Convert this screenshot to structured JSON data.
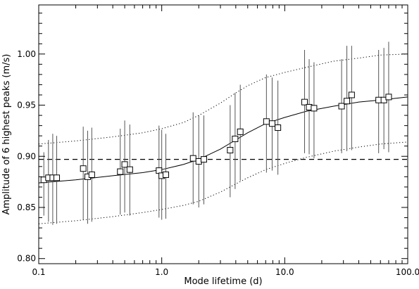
{
  "chart_data": {
    "type": "scatter",
    "xlabel": "Mode lifetime (d)",
    "ylabel": "Amplitude of 6 highest peaks (m/s)",
    "xscale": "log",
    "xlim": [
      0.1,
      100.0
    ],
    "ylim": [
      0.795,
      1.048
    ],
    "grid": false,
    "x_ticks": [
      {
        "value": 0.1,
        "label": "0.1"
      },
      {
        "value": 1.0,
        "label": "1.0"
      },
      {
        "value": 10.0,
        "label": "10.0"
      },
      {
        "value": 100.0,
        "label": "100.0"
      }
    ],
    "y_ticks": [
      {
        "value": 0.8,
        "label": "0.80"
      },
      {
        "value": 0.85,
        "label": "0.85"
      },
      {
        "value": 0.9,
        "label": "0.90"
      },
      {
        "value": 0.95,
        "label": "0.95"
      },
      {
        "value": 1.0,
        "label": "1.00"
      }
    ],
    "reference_level": 0.897,
    "points": [
      {
        "x": 0.11,
        "y": 0.877,
        "err_lo": 0.842,
        "err_hi": 0.904
      },
      {
        "x": 0.12,
        "y": 0.879,
        "err_lo": 0.836,
        "err_hi": 0.916
      },
      {
        "x": 0.13,
        "y": 0.879,
        "err_lo": 0.833,
        "err_hi": 0.922
      },
      {
        "x": 0.14,
        "y": 0.879,
        "err_lo": 0.834,
        "err_hi": 0.92
      },
      {
        "x": 0.23,
        "y": 0.888,
        "err_lo": 0.838,
        "err_hi": 0.929
      },
      {
        "x": 0.25,
        "y": 0.88,
        "err_lo": 0.834,
        "err_hi": 0.925
      },
      {
        "x": 0.27,
        "y": 0.882,
        "err_lo": 0.836,
        "err_hi": 0.928
      },
      {
        "x": 0.46,
        "y": 0.885,
        "err_lo": 0.843,
        "err_hi": 0.927
      },
      {
        "x": 0.5,
        "y": 0.892,
        "err_lo": 0.845,
        "err_hi": 0.935
      },
      {
        "x": 0.55,
        "y": 0.887,
        "err_lo": 0.842,
        "err_hi": 0.931
      },
      {
        "x": 0.95,
        "y": 0.886,
        "err_lo": 0.84,
        "err_hi": 0.93
      },
      {
        "x": 1.0,
        "y": 0.881,
        "err_lo": 0.838,
        "err_hi": 0.926
      },
      {
        "x": 1.08,
        "y": 0.882,
        "err_lo": 0.839,
        "err_hi": 0.922
      },
      {
        "x": 1.8,
        "y": 0.898,
        "err_lo": 0.853,
        "err_hi": 0.943
      },
      {
        "x": 2.0,
        "y": 0.895,
        "err_lo": 0.85,
        "err_hi": 0.94
      },
      {
        "x": 2.2,
        "y": 0.897,
        "err_lo": 0.853,
        "err_hi": 0.94
      },
      {
        "x": 3.6,
        "y": 0.906,
        "err_lo": 0.86,
        "err_hi": 0.95
      },
      {
        "x": 3.95,
        "y": 0.917,
        "err_lo": 0.868,
        "err_hi": 0.962
      },
      {
        "x": 4.35,
        "y": 0.924,
        "err_lo": 0.876,
        "err_hi": 0.97
      },
      {
        "x": 7.1,
        "y": 0.934,
        "err_lo": 0.884,
        "err_hi": 0.98
      },
      {
        "x": 7.9,
        "y": 0.932,
        "err_lo": 0.886,
        "err_hi": 0.977
      },
      {
        "x": 8.8,
        "y": 0.928,
        "err_lo": 0.882,
        "err_hi": 0.974
      },
      {
        "x": 14.5,
        "y": 0.953,
        "err_lo": 0.903,
        "err_hi": 1.004
      },
      {
        "x": 15.8,
        "y": 0.948,
        "err_lo": 0.902,
        "err_hi": 0.995
      },
      {
        "x": 17.3,
        "y": 0.947,
        "err_lo": 0.898,
        "err_hi": 0.992
      },
      {
        "x": 29.0,
        "y": 0.949,
        "err_lo": 0.903,
        "err_hi": 0.995
      },
      {
        "x": 32.0,
        "y": 0.954,
        "err_lo": 0.905,
        "err_hi": 1.008
      },
      {
        "x": 35.0,
        "y": 0.96,
        "err_lo": 0.906,
        "err_hi": 1.008
      },
      {
        "x": 58.0,
        "y": 0.955,
        "err_lo": 0.903,
        "err_hi": 1.004
      },
      {
        "x": 64.0,
        "y": 0.955,
        "err_lo": 0.907,
        "err_hi": 1.006
      },
      {
        "x": 70.0,
        "y": 0.958,
        "err_lo": 0.904,
        "err_hi": 1.012
      }
    ],
    "fit_curve": [
      [
        0.1,
        0.874
      ],
      [
        0.2,
        0.877
      ],
      [
        0.4,
        0.881
      ],
      [
        0.7,
        0.884
      ],
      [
        1.0,
        0.887
      ],
      [
        1.5,
        0.892
      ],
      [
        2.0,
        0.897
      ],
      [
        3.0,
        0.907
      ],
      [
        4.0,
        0.916
      ],
      [
        5.0,
        0.923
      ],
      [
        7.0,
        0.932
      ],
      [
        10.0,
        0.938
      ],
      [
        15.0,
        0.944
      ],
      [
        25.0,
        0.949
      ],
      [
        40.0,
        0.953
      ],
      [
        60.0,
        0.955
      ],
      [
        100.0,
        0.958
      ]
    ],
    "upper_bound_curve": [
      [
        0.1,
        0.912
      ],
      [
        0.2,
        0.915
      ],
      [
        0.4,
        0.919
      ],
      [
        0.7,
        0.923
      ],
      [
        1.0,
        0.927
      ],
      [
        1.5,
        0.933
      ],
      [
        2.0,
        0.94
      ],
      [
        3.0,
        0.952
      ],
      [
        4.0,
        0.962
      ],
      [
        5.0,
        0.969
      ],
      [
        7.0,
        0.977
      ],
      [
        10.0,
        0.982
      ],
      [
        15.0,
        0.987
      ],
      [
        25.0,
        0.993
      ],
      [
        40.0,
        0.996
      ],
      [
        60.0,
        0.999
      ],
      [
        100.0,
        1.0
      ]
    ],
    "lower_bound_curve": [
      [
        0.1,
        0.834
      ],
      [
        0.2,
        0.837
      ],
      [
        0.4,
        0.841
      ],
      [
        0.7,
        0.845
      ],
      [
        1.0,
        0.848
      ],
      [
        1.5,
        0.852
      ],
      [
        2.0,
        0.856
      ],
      [
        3.0,
        0.865
      ],
      [
        4.0,
        0.873
      ],
      [
        5.0,
        0.879
      ],
      [
        7.0,
        0.887
      ],
      [
        10.0,
        0.893
      ],
      [
        15.0,
        0.899
      ],
      [
        25.0,
        0.905
      ],
      [
        40.0,
        0.909
      ],
      [
        60.0,
        0.912
      ],
      [
        100.0,
        0.914
      ]
    ]
  }
}
